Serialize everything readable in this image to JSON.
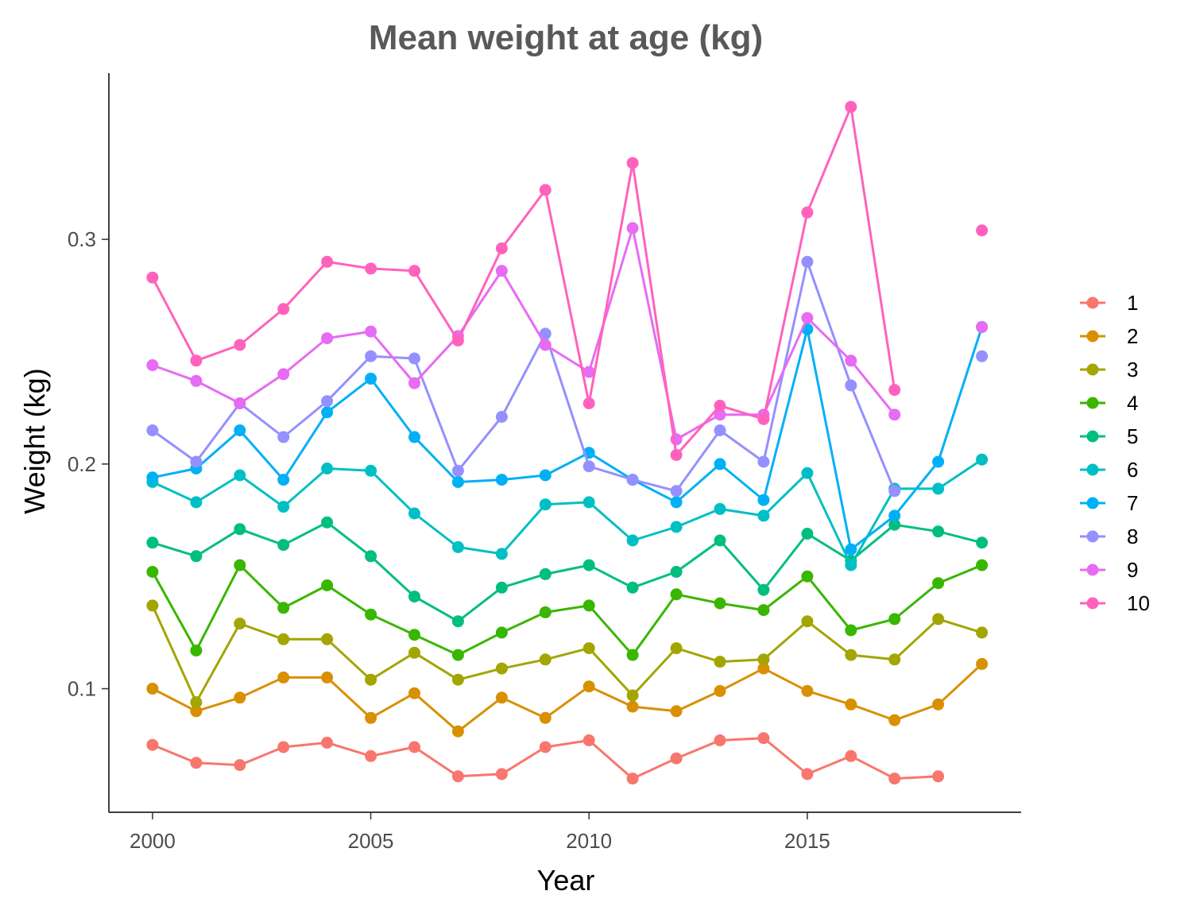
{
  "chart_data": {
    "type": "line",
    "title": "Mean weight at age (kg)",
    "xlabel": "Year",
    "ylabel": "Weight (kg)",
    "xlim": [
      1999.0,
      2019.9
    ],
    "ylim": [
      0.045,
      0.374
    ],
    "x_ticks": [
      2000,
      2005,
      2010,
      2015
    ],
    "y_ticks": [
      0.1,
      0.2,
      0.3
    ],
    "y_tick_labels": [
      "0.1",
      "0.2",
      "0.3"
    ],
    "grid": false,
    "legend_position": "right",
    "x": [
      2000,
      2001,
      2002,
      2003,
      2004,
      2005,
      2006,
      2007,
      2008,
      2009,
      2010,
      2011,
      2012,
      2013,
      2014,
      2015,
      2016,
      2017,
      2018,
      2019
    ],
    "series": [
      {
        "name": "1",
        "color": "#F8766D",
        "values": [
          0.075,
          0.067,
          0.066,
          0.074,
          0.076,
          0.07,
          0.074,
          0.061,
          0.062,
          0.074,
          0.077,
          0.06,
          0.069,
          0.077,
          0.078,
          0.062,
          0.07,
          0.06,
          0.061,
          null
        ]
      },
      {
        "name": "2",
        "color": "#D89000",
        "values": [
          0.1,
          0.09,
          0.096,
          0.105,
          0.105,
          0.087,
          0.098,
          0.081,
          0.096,
          0.087,
          0.101,
          0.092,
          0.09,
          0.099,
          0.109,
          0.099,
          0.093,
          0.086,
          0.093,
          0.111
        ]
      },
      {
        "name": "3",
        "color": "#A3A500",
        "values": [
          0.137,
          0.094,
          0.129,
          0.122,
          0.122,
          0.104,
          0.116,
          0.104,
          0.109,
          0.113,
          0.118,
          0.097,
          0.118,
          0.112,
          0.113,
          0.13,
          0.115,
          0.113,
          0.131,
          0.125
        ]
      },
      {
        "name": "4",
        "color": "#39B600",
        "values": [
          0.152,
          0.117,
          0.155,
          0.136,
          0.146,
          0.133,
          0.124,
          0.115,
          0.125,
          0.134,
          0.137,
          0.115,
          0.142,
          0.138,
          0.135,
          0.15,
          0.126,
          0.131,
          0.147,
          0.155
        ]
      },
      {
        "name": "5",
        "color": "#00BF7D",
        "values": [
          0.165,
          0.159,
          0.171,
          0.164,
          0.174,
          0.159,
          0.141,
          0.13,
          0.145,
          0.151,
          0.155,
          0.145,
          0.152,
          0.166,
          0.144,
          0.169,
          0.157,
          0.173,
          0.17,
          0.165
        ]
      },
      {
        "name": "6",
        "color": "#00BFC4",
        "values": [
          0.192,
          0.183,
          0.195,
          0.181,
          0.198,
          0.197,
          0.178,
          0.163,
          0.16,
          0.182,
          0.183,
          0.166,
          0.172,
          0.18,
          0.177,
          0.196,
          0.155,
          0.189,
          0.189,
          0.202
        ]
      },
      {
        "name": "7",
        "color": "#00B0F6",
        "values": [
          0.194,
          0.198,
          0.215,
          0.193,
          0.223,
          0.238,
          0.212,
          0.192,
          0.193,
          0.195,
          0.205,
          0.193,
          0.183,
          0.2,
          0.184,
          0.26,
          0.162,
          0.177,
          0.201,
          0.261
        ]
      },
      {
        "name": "8",
        "color": "#9590FF",
        "values": [
          0.215,
          0.201,
          0.227,
          0.212,
          0.228,
          0.248,
          0.247,
          0.197,
          0.221,
          0.258,
          0.199,
          0.193,
          0.188,
          0.215,
          0.201,
          0.29,
          0.235,
          0.188,
          null,
          0.248
        ]
      },
      {
        "name": "9",
        "color": "#E76BF3",
        "values": [
          0.244,
          0.237,
          0.227,
          0.24,
          0.256,
          0.259,
          0.236,
          0.257,
          0.286,
          0.253,
          0.241,
          0.305,
          0.211,
          0.222,
          0.222,
          0.265,
          0.246,
          0.222,
          null,
          0.261
        ]
      },
      {
        "name": "10",
        "color": "#FF62BC",
        "values": [
          0.283,
          0.246,
          0.253,
          0.269,
          0.29,
          0.287,
          0.286,
          0.255,
          0.296,
          0.322,
          0.227,
          0.334,
          0.204,
          0.226,
          0.22,
          0.312,
          0.359,
          0.233,
          null,
          0.304
        ]
      }
    ]
  }
}
